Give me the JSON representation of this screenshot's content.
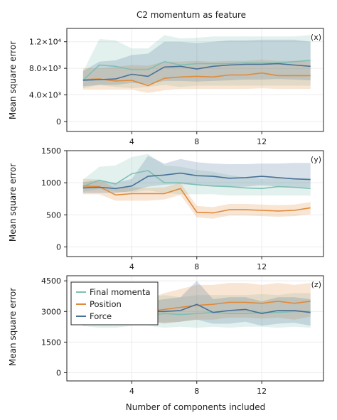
{
  "chart_data": {
    "type": "line",
    "title": "C2 momentum as feature",
    "xlabel": "Number of components included",
    "ylabel": "Mean square error",
    "x": [
      1,
      2,
      3,
      4,
      5,
      6,
      7,
      8,
      9,
      10,
      11,
      12,
      13,
      14,
      15
    ],
    "xlim": [
      0,
      15.8
    ],
    "xticks": [
      "4",
      "8",
      "12"
    ],
    "xtick_values": [
      4,
      8,
      12
    ],
    "grid": true,
    "legend": {
      "placement": "top-left",
      "panel": 2,
      "entries": [
        "Final momenta",
        "Position",
        "Force"
      ]
    },
    "colors": {
      "Final momenta": "#7fbfb3",
      "Position": "#e08a3a",
      "Force": "#4a7096"
    },
    "panels": [
      {
        "label": "(x)",
        "ylim": [
          -1500,
          14000
        ],
        "yticks": [
          "0",
          "4.0×10³",
          "8.0×10³",
          "1.2×10⁴"
        ],
        "ytick_values": [
          0,
          4000,
          8000,
          12000
        ],
        "series": [
          {
            "name": "Final momenta",
            "values": [
              6200,
              8500,
              8300,
              7800,
              7800,
              9000,
              8500,
              8700,
              8700,
              8700,
              8800,
              8800,
              8800,
              9000,
              9200
            ],
            "lower": [
              5000,
              5500,
              5200,
              5000,
              5200,
              5500,
              5200,
              5400,
              5400,
              5400,
              5400,
              5400,
              5400,
              5400,
              5400
            ],
            "upper": [
              7500,
              12400,
              12200,
              11000,
              11000,
              13000,
              12500,
              12600,
              12800,
              12800,
              12800,
              12800,
              12800,
              12800,
              13000
            ]
          },
          {
            "name": "Position",
            "values": [
              6300,
              6400,
              6100,
              6200,
              5400,
              6500,
              6700,
              6800,
              6700,
              7000,
              7000,
              7300,
              6900,
              6900,
              6900
            ],
            "lower": [
              4800,
              4800,
              4800,
              4800,
              4300,
              4700,
              4900,
              4900,
              4900,
              4900,
              4900,
              5000,
              4900,
              4900,
              4900
            ],
            "upper": [
              8000,
              8000,
              8200,
              8500,
              8400,
              9000,
              9000,
              9100,
              9000,
              9100,
              9100,
              9300,
              9100,
              9100,
              9100
            ]
          },
          {
            "name": "Force",
            "values": [
              6200,
              6300,
              6400,
              7100,
              6800,
              8200,
              8300,
              7900,
              8300,
              8500,
              8600,
              8600,
              8700,
              8500,
              8300
            ],
            "lower": [
              5300,
              5500,
              5500,
              5800,
              5600,
              6100,
              6100,
              6000,
              6100,
              6200,
              6300,
              6300,
              6400,
              6300,
              6200
            ],
            "upper": [
              7600,
              9000,
              9200,
              10000,
              10200,
              12000,
              12000,
              11800,
              12000,
              12200,
              12200,
              12300,
              12300,
              12300,
              12000
            ]
          }
        ]
      },
      {
        "label": "(y)",
        "ylim": [
          -150,
          1500
        ],
        "yticks": [
          "0",
          "500",
          "1000",
          "1500"
        ],
        "ytick_values": [
          0,
          500,
          1000,
          1500
        ],
        "series": [
          {
            "name": "Final momenta",
            "values": [
              940,
              1040,
              980,
              1140,
              1190,
              1000,
              1000,
              970,
              950,
              940,
              920,
              910,
              940,
              930,
              910
            ],
            "lower": [
              860,
              900,
              860,
              850,
              880,
              840,
              820,
              820,
              820,
              800,
              800,
              800,
              800,
              800,
              800
            ],
            "upper": [
              1050,
              1250,
              1270,
              1400,
              1450,
              1270,
              1250,
              1200,
              1170,
              1120,
              1080,
              1060,
              1070,
              1050,
              1040
            ]
          },
          {
            "name": "Position",
            "values": [
              950,
              940,
              810,
              830,
              830,
              830,
              910,
              540,
              530,
              580,
              580,
              570,
              560,
              570,
              610
            ],
            "lower": [
              820,
              820,
              720,
              720,
              720,
              740,
              810,
              460,
              440,
              490,
              490,
              480,
              470,
              480,
              510
            ],
            "upper": [
              1060,
              1050,
              910,
              930,
              920,
              930,
              1000,
              640,
              620,
              670,
              670,
              660,
              650,
              660,
              700
            ]
          },
          {
            "name": "Force",
            "values": [
              920,
              930,
              910,
              950,
              1100,
              1120,
              1150,
              1110,
              1100,
              1070,
              1080,
              1100,
              1080,
              1060,
              1050
            ],
            "lower": [
              840,
              840,
              840,
              870,
              940,
              970,
              980,
              960,
              940,
              930,
              940,
              960,
              940,
              920,
              930
            ],
            "upper": [
              1010,
              1040,
              1000,
              1060,
              1420,
              1300,
              1370,
              1320,
              1300,
              1290,
              1290,
              1300,
              1300,
              1310,
              1310
            ]
          }
        ]
      },
      {
        "label": "(z)",
        "ylim": [
          -400,
          4750
        ],
        "yticks": [
          "0",
          "1500",
          "3000",
          "4500"
        ],
        "ytick_values": [
          0,
          1500,
          3000,
          4500
        ],
        "series": [
          {
            "name": "Final momenta",
            "values": [
              2900,
              2850,
              2900,
              2950,
              2800,
              2900,
              2850,
              2900,
              2950,
              2900,
              2900,
              2950,
              2950,
              3000,
              3000
            ],
            "lower": [
              2300,
              2200,
              2200,
              2300,
              2300,
              2200,
              2250,
              2200,
              2250,
              2200,
              2250,
              2250,
              2200,
              2250,
              2200
            ],
            "upper": [
              3600,
              3700,
              3700,
              3700,
              3700,
              3800,
              3700,
              3800,
              3800,
              3800,
              3800,
              3850,
              3800,
              3900,
              3900
            ]
          },
          {
            "name": "Position",
            "values": [
              3100,
              3050,
              3150,
              3100,
              3000,
              3100,
              3200,
              3300,
              3350,
              3450,
              3450,
              3400,
              3500,
              3400,
              3500
            ],
            "lower": [
              2500,
              2400,
              2400,
              2400,
              2500,
              2400,
              2500,
              2600,
              2600,
              2700,
              2700,
              2650,
              2700,
              2600,
              2750
            ],
            "upper": [
              3700,
              3700,
              3900,
              3700,
              3600,
              3900,
              4100,
              4300,
              4300,
              4400,
              4400,
              4300,
              4400,
              4300,
              4400
            ]
          },
          {
            "name": "Force",
            "values": [
              2750,
              2900,
              2900,
              2850,
              3000,
              3000,
              3050,
              3350,
              2950,
              3050,
              3100,
              2900,
              3050,
              3050,
              2950
            ],
            "lower": [
              2300,
              2400,
              2400,
              2350,
              2500,
              2450,
              2500,
              2600,
              2400,
              2400,
              2500,
              2300,
              2400,
              2450,
              2300
            ],
            "upper": [
              3300,
              3400,
              3500,
              3400,
              3500,
              3600,
              3700,
              4500,
              3600,
              3700,
              3700,
              3500,
              3700,
              3700,
              3600
            ]
          }
        ]
      }
    ]
  }
}
